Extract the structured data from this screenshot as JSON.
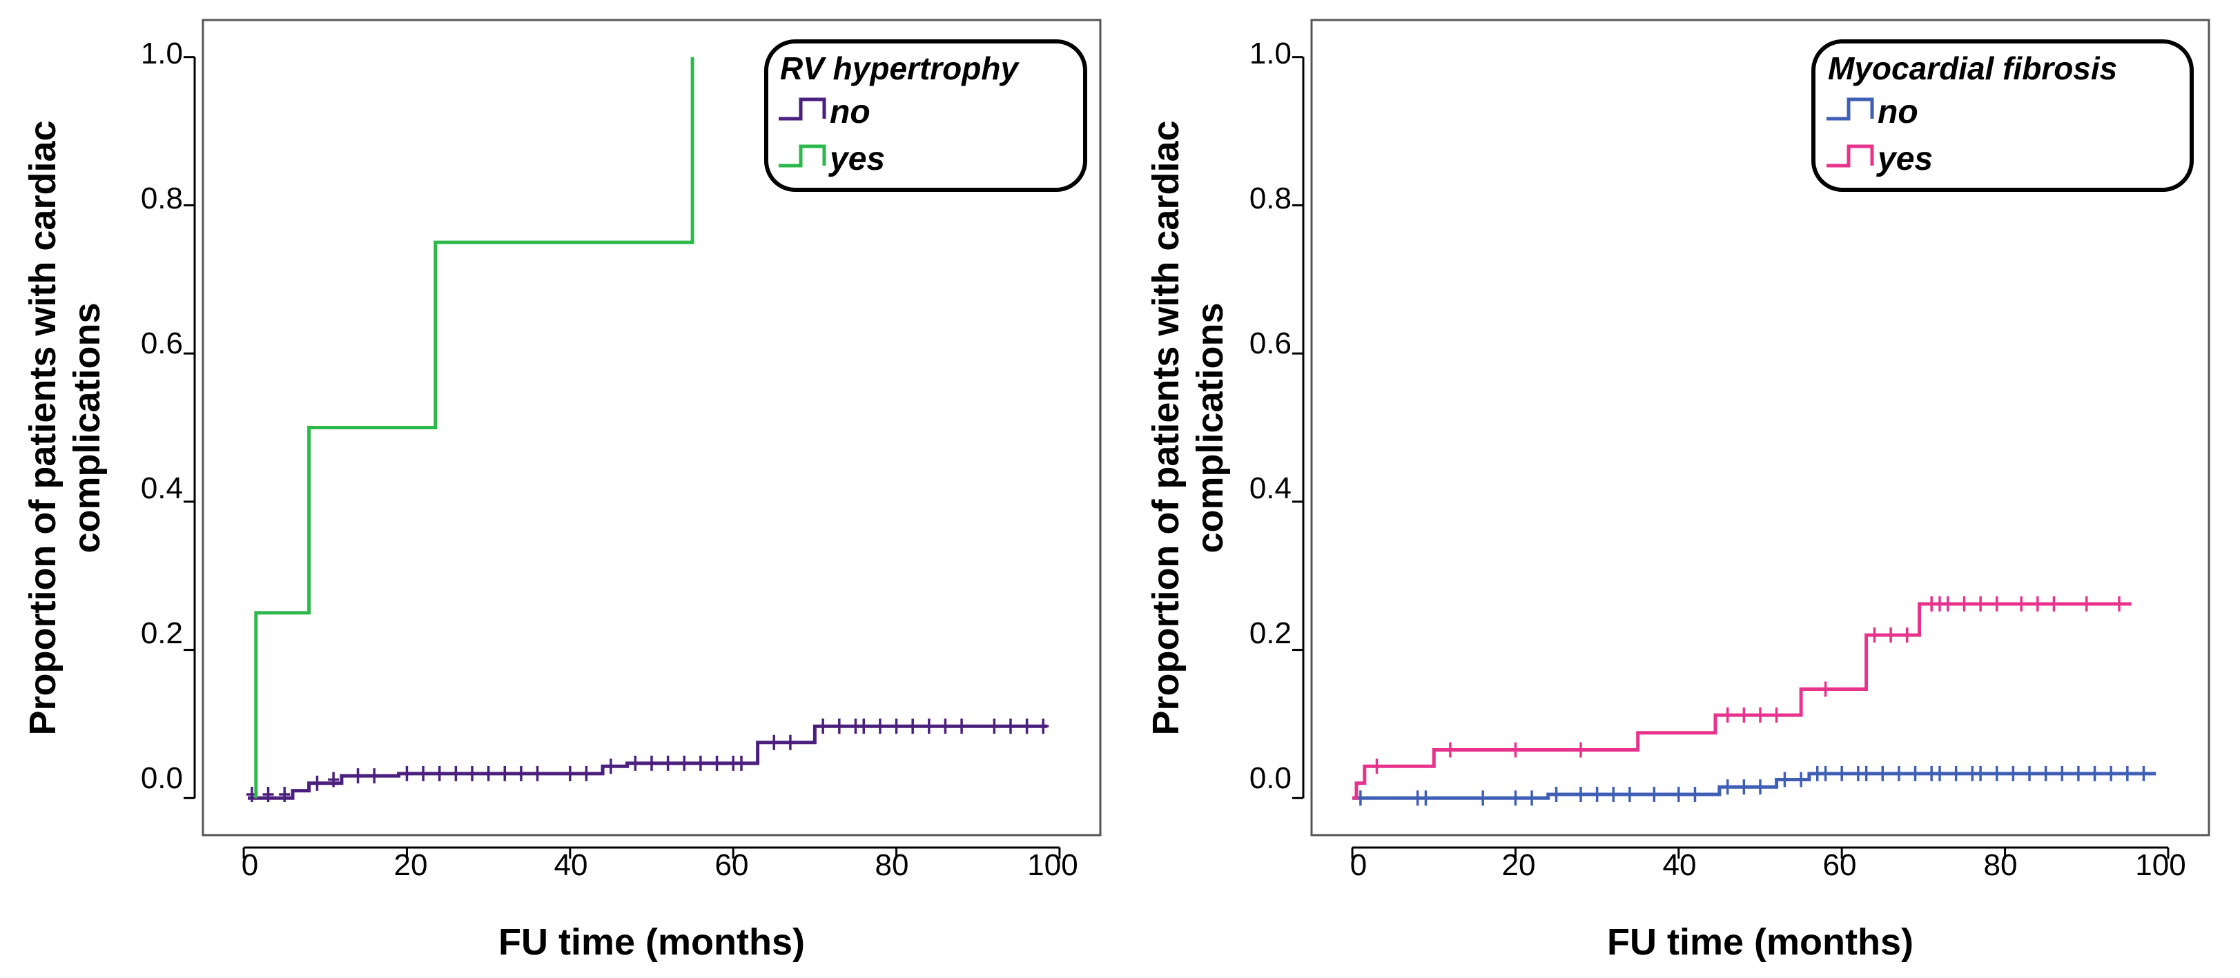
{
  "chart_data": [
    {
      "type": "line",
      "subtype": "kaplan-meier-cumulative-incidence",
      "title": "",
      "xlabel": "FU time (months)",
      "ylabel_lines": [
        "Proportion of patients with cardiac",
        "complications"
      ],
      "xlim": [
        -5,
        105
      ],
      "ylim": [
        -0.05,
        1.05
      ],
      "xticks": [
        0,
        20,
        40,
        60,
        80,
        100
      ],
      "yticks": [
        0.0,
        0.2,
        0.4,
        0.6,
        0.8,
        1.0
      ],
      "xtick_labels": [
        "0",
        "20",
        "40",
        "60",
        "80",
        "100"
      ],
      "ytick_labels": [
        "0.0",
        "0.2",
        "0.4",
        "0.6",
        "0.8",
        "1.0"
      ],
      "legend": {
        "title": "RV hypertrophy",
        "position": "top-right"
      },
      "series": [
        {
          "name": "no",
          "color": "#4b1f7d",
          "steps": [
            [
              0.5,
              0.0
            ],
            [
              6,
              0.01
            ],
            [
              8,
              0.02
            ],
            [
              12,
              0.03
            ],
            [
              19,
              0.033
            ],
            [
              44,
              0.043
            ],
            [
              47,
              0.047
            ],
            [
              63,
              0.075
            ],
            [
              70,
              0.097
            ],
            [
              98.5,
              0.097
            ]
          ],
          "censored": [
            [
              1,
              0.005
            ],
            [
              3,
              0.005
            ],
            [
              5,
              0.005
            ],
            [
              9,
              0.02
            ],
            [
              11,
              0.025
            ],
            [
              14,
              0.03
            ],
            [
              16,
              0.03
            ],
            [
              20,
              0.033
            ],
            [
              22,
              0.033
            ],
            [
              24,
              0.033
            ],
            [
              26,
              0.033
            ],
            [
              28,
              0.033
            ],
            [
              30,
              0.033
            ],
            [
              32,
              0.033
            ],
            [
              34,
              0.033
            ],
            [
              36,
              0.033
            ],
            [
              40,
              0.033
            ],
            [
              42,
              0.033
            ],
            [
              45,
              0.043
            ],
            [
              48,
              0.047
            ],
            [
              50,
              0.047
            ],
            [
              52,
              0.047
            ],
            [
              54,
              0.047
            ],
            [
              56,
              0.047
            ],
            [
              58,
              0.047
            ],
            [
              60,
              0.047
            ],
            [
              61,
              0.047
            ],
            [
              65,
              0.075
            ],
            [
              67,
              0.075
            ],
            [
              71,
              0.097
            ],
            [
              73,
              0.097
            ],
            [
              75,
              0.097
            ],
            [
              76,
              0.097
            ],
            [
              78,
              0.097
            ],
            [
              80,
              0.097
            ],
            [
              82,
              0.097
            ],
            [
              84,
              0.097
            ],
            [
              86,
              0.097
            ],
            [
              88,
              0.097
            ],
            [
              92,
              0.097
            ],
            [
              94,
              0.097
            ],
            [
              96,
              0.097
            ],
            [
              98,
              0.097
            ]
          ]
        },
        {
          "name": "yes",
          "color": "#2db84b",
          "steps": [
            [
              1.5,
              0.0
            ],
            [
              1.5,
              0.25
            ],
            [
              8,
              0.5
            ],
            [
              23.5,
              0.75
            ],
            [
              55,
              1.0
            ]
          ],
          "censored": []
        }
      ]
    },
    {
      "type": "line",
      "subtype": "kaplan-meier-cumulative-incidence",
      "title": "",
      "xlabel": "FU time (months)",
      "ylabel_lines": [
        "Proportion of patients with cardiac",
        "complications"
      ],
      "xlim": [
        -5,
        105
      ],
      "ylim": [
        -0.05,
        1.05
      ],
      "xticks": [
        0,
        20,
        40,
        60,
        80,
        100
      ],
      "yticks": [
        0.0,
        0.2,
        0.4,
        0.6,
        0.8,
        1.0
      ],
      "xtick_labels": [
        "0",
        "20",
        "40",
        "60",
        "80",
        "100"
      ],
      "ytick_labels": [
        "0.0",
        "0.2",
        "0.4",
        "0.6",
        "0.8",
        "1.0"
      ],
      "legend": {
        "title": "Myocardial fibrosis",
        "position": "top-right"
      },
      "series": [
        {
          "name": "no",
          "color": "#3f5fb5",
          "steps": [
            [
              0,
              0.0
            ],
            [
              24,
              0.005
            ],
            [
              45,
              0.015
            ],
            [
              52,
              0.025
            ],
            [
              56,
              0.033
            ],
            [
              98.5,
              0.033
            ]
          ],
          "censored": [
            [
              1,
              0.0
            ],
            [
              8,
              0.0
            ],
            [
              9,
              0.0
            ],
            [
              16,
              0.0
            ],
            [
              20,
              0.0
            ],
            [
              22,
              0.0
            ],
            [
              25,
              0.005
            ],
            [
              28,
              0.005
            ],
            [
              30,
              0.005
            ],
            [
              32,
              0.005
            ],
            [
              34,
              0.005
            ],
            [
              37,
              0.005
            ],
            [
              40,
              0.005
            ],
            [
              42,
              0.005
            ],
            [
              46,
              0.015
            ],
            [
              48,
              0.015
            ],
            [
              50,
              0.015
            ],
            [
              53,
              0.025
            ],
            [
              55,
              0.025
            ],
            [
              57,
              0.033
            ],
            [
              58,
              0.033
            ],
            [
              60,
              0.033
            ],
            [
              62,
              0.033
            ],
            [
              63,
              0.033
            ],
            [
              65,
              0.033
            ],
            [
              67,
              0.033
            ],
            [
              69,
              0.033
            ],
            [
              71,
              0.033
            ],
            [
              72,
              0.033
            ],
            [
              74,
              0.033
            ],
            [
              76,
              0.033
            ],
            [
              77,
              0.033
            ],
            [
              79,
              0.033
            ],
            [
              81,
              0.033
            ],
            [
              83,
              0.033
            ],
            [
              85,
              0.033
            ],
            [
              87,
              0.033
            ],
            [
              89,
              0.033
            ],
            [
              91,
              0.033
            ],
            [
              93,
              0.033
            ],
            [
              95,
              0.033
            ],
            [
              97,
              0.033
            ]
          ]
        },
        {
          "name": "yes",
          "color": "#e8338d",
          "steps": [
            [
              0,
              0.0
            ],
            [
              0.5,
              0.02
            ],
            [
              1.5,
              0.043
            ],
            [
              10,
              0.065
            ],
            [
              35,
              0.088
            ],
            [
              44.5,
              0.112
            ],
            [
              55,
              0.147
            ],
            [
              63,
              0.22
            ],
            [
              69.5,
              0.262
            ],
            [
              95.5,
              0.262
            ]
          ],
          "censored": [
            [
              3,
              0.043
            ],
            [
              12,
              0.065
            ],
            [
              20,
              0.065
            ],
            [
              28,
              0.065
            ],
            [
              46,
              0.112
            ],
            [
              48,
              0.112
            ],
            [
              50,
              0.112
            ],
            [
              52,
              0.112
            ],
            [
              58,
              0.147
            ],
            [
              64,
              0.22
            ],
            [
              66,
              0.22
            ],
            [
              68,
              0.22
            ],
            [
              71,
              0.262
            ],
            [
              72,
              0.262
            ],
            [
              73,
              0.262
            ],
            [
              75,
              0.262
            ],
            [
              77,
              0.262
            ],
            [
              79,
              0.262
            ],
            [
              82,
              0.262
            ],
            [
              84,
              0.262
            ],
            [
              86,
              0.262
            ],
            [
              90,
              0.262
            ],
            [
              94,
              0.262
            ]
          ]
        }
      ]
    }
  ]
}
